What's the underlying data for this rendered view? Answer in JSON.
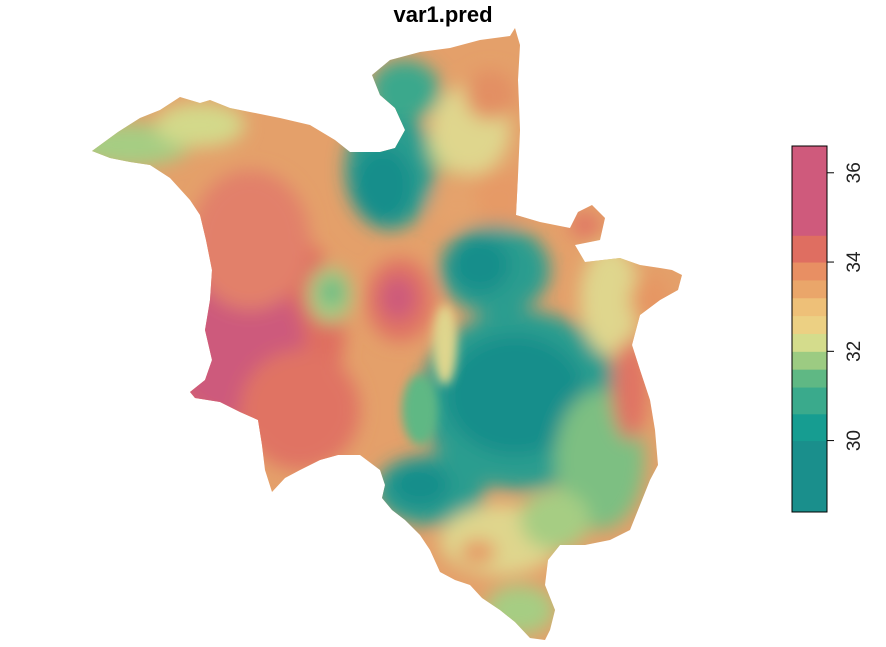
{
  "plot": {
    "title": "var1.pred"
  },
  "legend": {
    "min": 28.4,
    "max": 36.6,
    "ticks": [
      "30",
      "32",
      "34",
      "36"
    ],
    "tick_values": [
      30,
      32,
      34,
      36
    ],
    "bands": [
      {
        "to": 29.2,
        "color": "#1a8f8c"
      },
      {
        "to": 30.0,
        "color": "#1a8f8c"
      },
      {
        "to": 30.6,
        "color": "#169d91"
      },
      {
        "to": 31.2,
        "color": "#3aaa8c"
      },
      {
        "to": 31.6,
        "color": "#5fb884"
      },
      {
        "to": 32.0,
        "color": "#9ccb82"
      },
      {
        "to": 32.4,
        "color": "#d4dc8c"
      },
      {
        "to": 32.8,
        "color": "#ecd083"
      },
      {
        "to": 33.2,
        "color": "#eec078"
      },
      {
        "to": 33.6,
        "color": "#eaa66a"
      },
      {
        "to": 34.0,
        "color": "#e88f63"
      },
      {
        "to": 34.6,
        "color": "#df6e61"
      },
      {
        "to": 36.6,
        "color": "#cf5a7c"
      }
    ]
  },
  "map_colors": {
    "deep_teal": "#138e8b",
    "teal": "#2b9d8f",
    "green": "#63b681",
    "light_green": "#a6cd83",
    "yellow": "#dfd68d",
    "orange_light": "#eab474",
    "orange": "#e69663",
    "red": "#e07364",
    "magenta": "#cd5a7c"
  }
}
